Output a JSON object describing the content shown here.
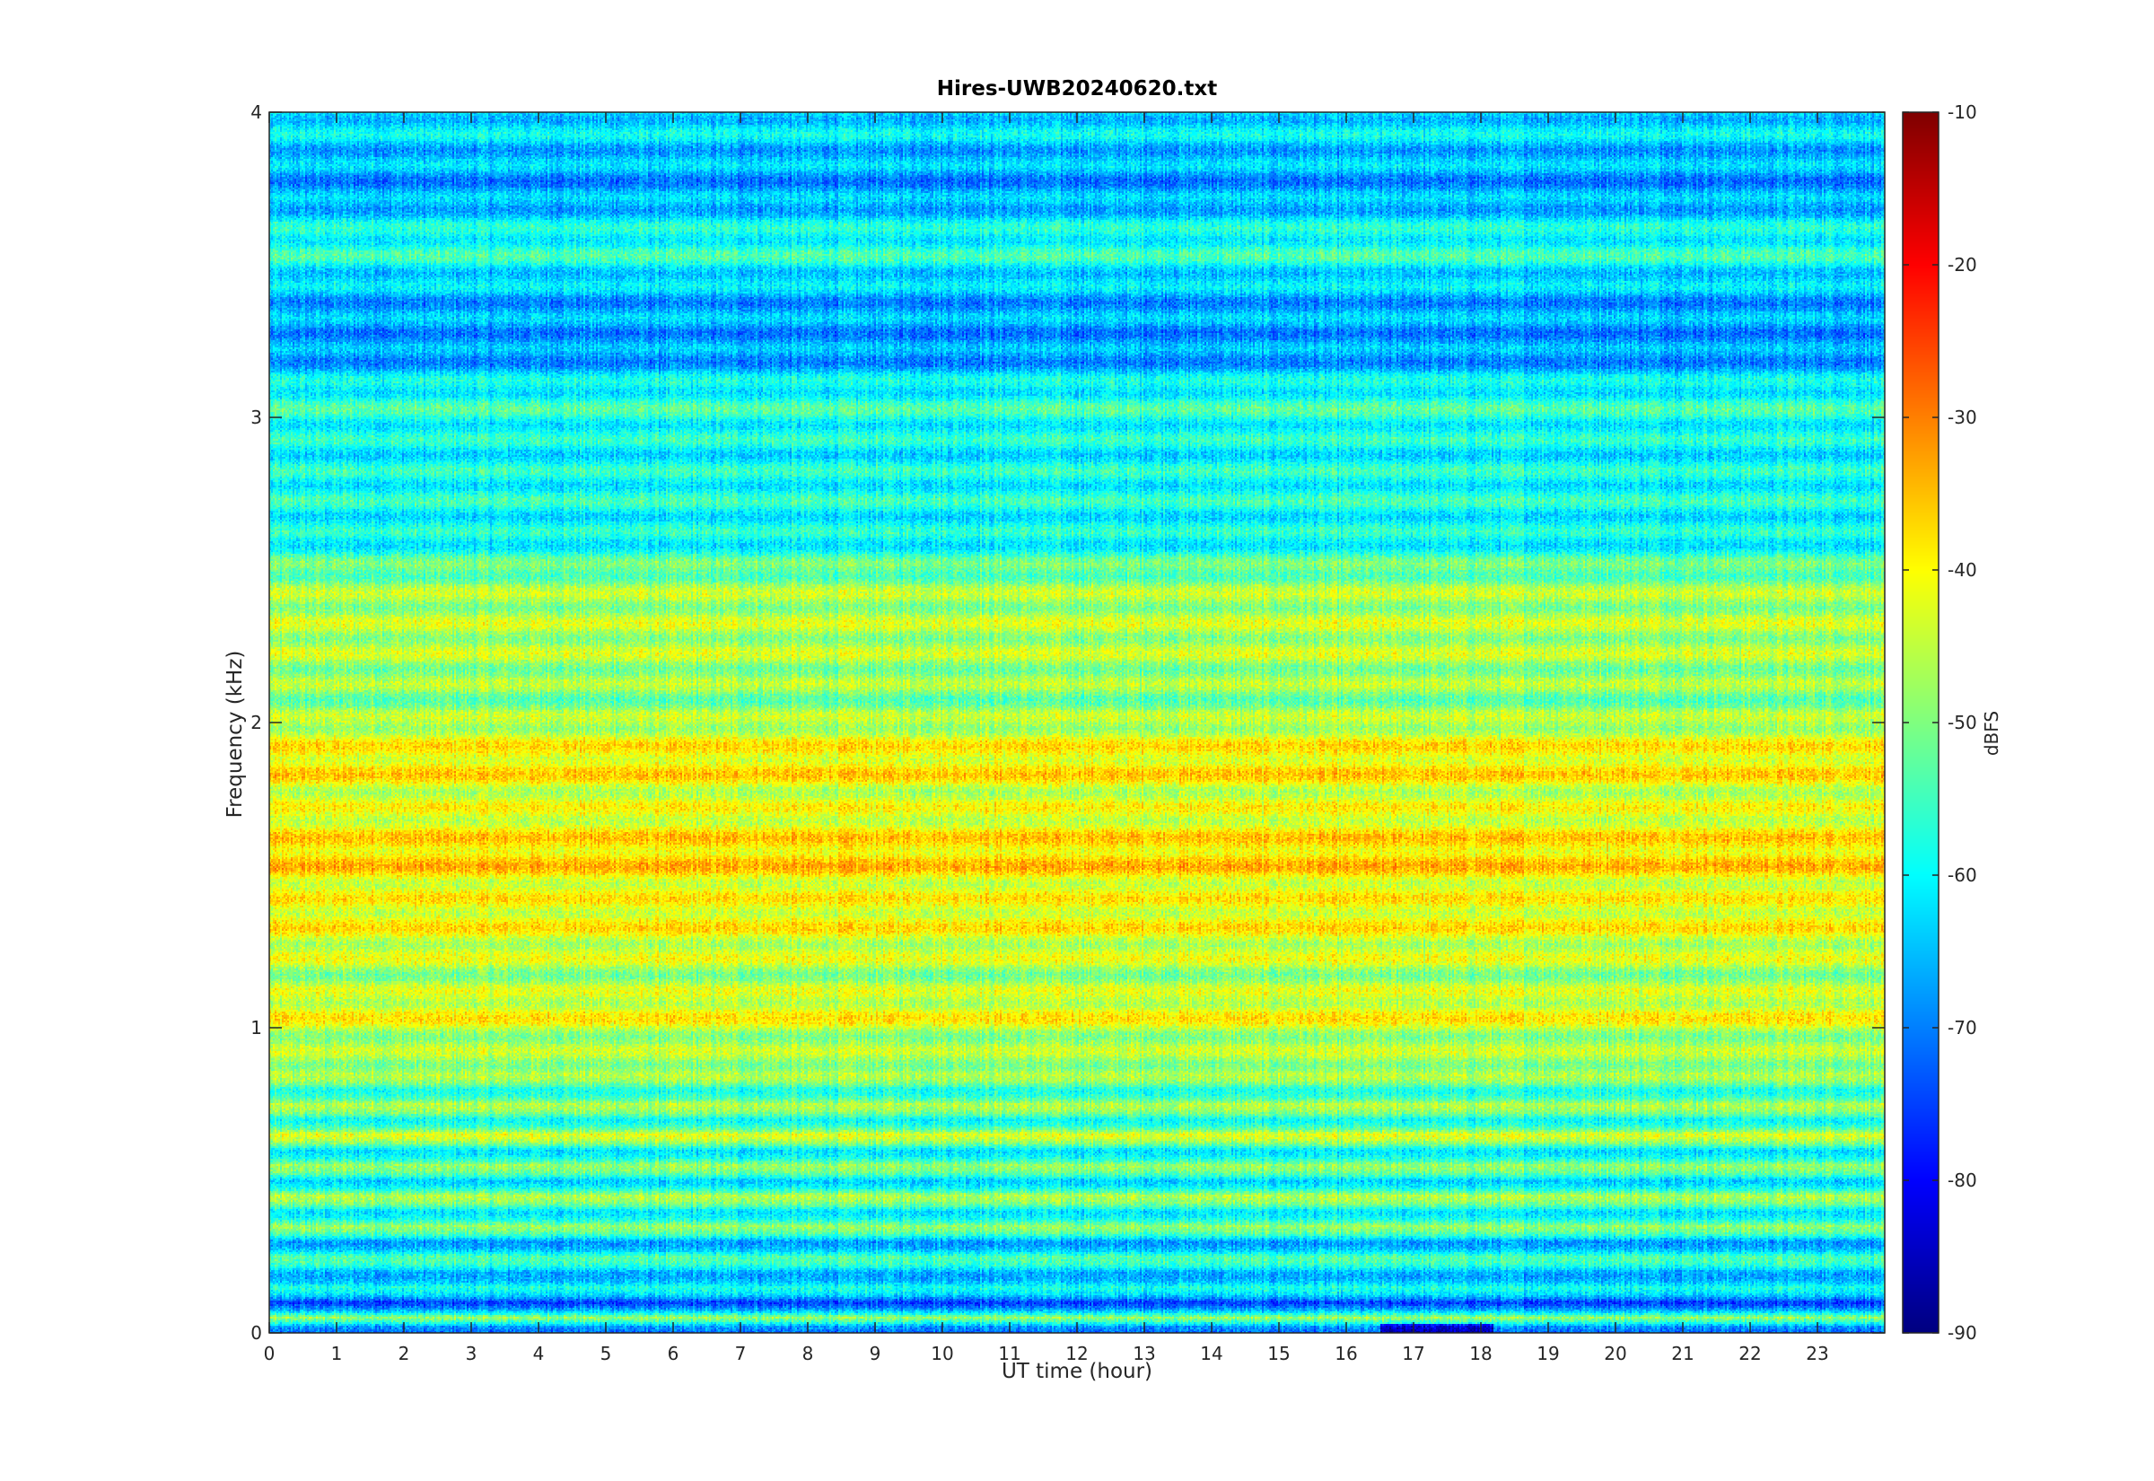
{
  "chart_data": {
    "type": "heatmap",
    "title": "Hires-UWB20240620.txt",
    "xlabel": "UT time (hour)",
    "ylabel": "Frequency (kHz)",
    "colorbar_label": "dBFS",
    "xlim": [
      0,
      24
    ],
    "ylim": [
      0,
      4
    ],
    "x_ticks": [
      "0",
      "1",
      "2",
      "3",
      "4",
      "5",
      "6",
      "7",
      "8",
      "9",
      "10",
      "11",
      "12",
      "13",
      "14",
      "15",
      "16",
      "17",
      "18",
      "19",
      "20",
      "21",
      "22",
      "23"
    ],
    "y_ticks": [
      "0",
      "1",
      "2",
      "3",
      "4"
    ],
    "clim": [
      -90,
      -10
    ],
    "colorbar_ticks": [
      "-90",
      "-80",
      "-70",
      "-60",
      "-50",
      "-40",
      "-30",
      "-20",
      "-10"
    ],
    "colormap": "jet",
    "grid": false,
    "band_profile_khz_dbfs": [
      [
        0.02,
        -72
      ],
      [
        0.05,
        -48
      ],
      [
        0.1,
        -76
      ],
      [
        0.15,
        -58
      ],
      [
        0.2,
        -66
      ],
      [
        0.25,
        -54
      ],
      [
        0.3,
        -68
      ],
      [
        0.35,
        -48
      ],
      [
        0.4,
        -62
      ],
      [
        0.45,
        -46
      ],
      [
        0.5,
        -64
      ],
      [
        0.55,
        -48
      ],
      [
        0.6,
        -62
      ],
      [
        0.65,
        -42
      ],
      [
        0.7,
        -60
      ],
      [
        0.75,
        -46
      ],
      [
        0.8,
        -58
      ],
      [
        0.85,
        -46
      ],
      [
        0.95,
        -48
      ],
      [
        1.05,
        -40
      ],
      [
        1.15,
        -48
      ],
      [
        1.25,
        -44
      ],
      [
        1.35,
        -40
      ],
      [
        1.45,
        -42
      ],
      [
        1.55,
        -36
      ],
      [
        1.65,
        -40
      ],
      [
        1.75,
        -44
      ],
      [
        1.85,
        -38
      ],
      [
        1.95,
        -42
      ],
      [
        2.05,
        -50
      ],
      [
        2.15,
        -48
      ],
      [
        2.25,
        -46
      ],
      [
        2.35,
        -46
      ],
      [
        2.45,
        -48
      ],
      [
        2.6,
        -60
      ],
      [
        2.75,
        -58
      ],
      [
        2.9,
        -60
      ],
      [
        3.05,
        -56
      ],
      [
        3.2,
        -68
      ],
      [
        3.4,
        -66
      ],
      [
        3.55,
        -56
      ],
      [
        3.75,
        -68
      ],
      [
        3.95,
        -62
      ]
    ]
  }
}
